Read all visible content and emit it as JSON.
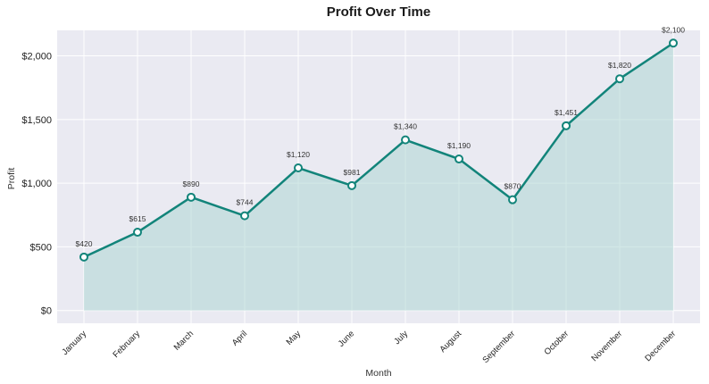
{
  "chart_data": {
    "type": "line",
    "title": "Profit Over Time",
    "xlabel": "Month",
    "ylabel": "Profit",
    "categories": [
      "January",
      "February",
      "March",
      "April",
      "May",
      "June",
      "July",
      "August",
      "September",
      "October",
      "November",
      "December"
    ],
    "values": [
      420,
      615,
      890,
      744,
      1120,
      981,
      1340,
      1190,
      870,
      1451,
      1820,
      2100
    ],
    "data_labels": [
      "$420",
      "$615",
      "$890",
      "$744",
      "$1,120",
      "$981",
      "$1,340",
      "$1,190",
      "$870",
      "$1,451",
      "$1,820",
      "$2,100"
    ],
    "y_ticks": [
      0,
      500,
      1000,
      1500,
      2000
    ],
    "y_tick_labels": [
      "$0",
      "$500",
      "$1,000",
      "$1,500",
      "$2,000"
    ],
    "ylim": [
      -100,
      2200
    ],
    "grid": true,
    "area_fill": true,
    "colors": {
      "line": "#12847a",
      "fill": "#a8d4d0",
      "plot_background": "#eaeaf2",
      "grid": "#ffffff"
    }
  }
}
